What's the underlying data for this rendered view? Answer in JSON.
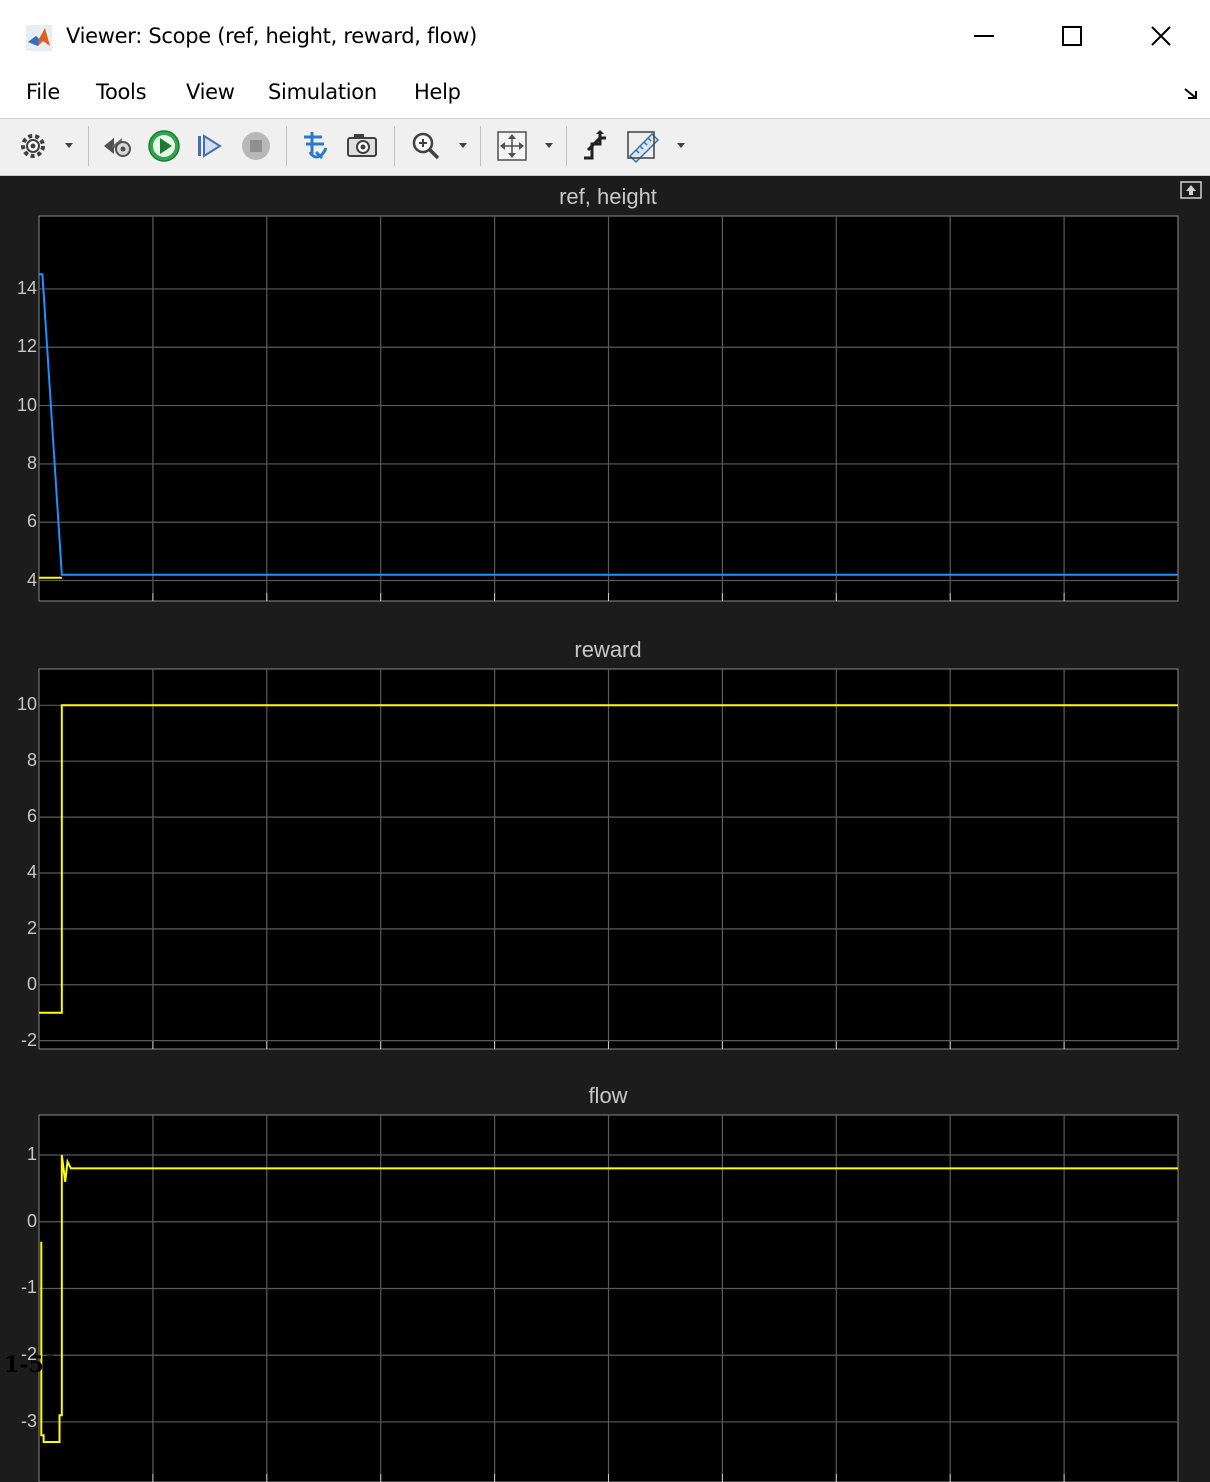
{
  "window": {
    "title": "Viewer: Scope (ref, height, reward, flow)",
    "minimize_icon": "minimize-icon",
    "maximize_icon": "maximize-icon",
    "close_icon": "close-icon"
  },
  "menu": {
    "items": [
      "File",
      "Tools",
      "View",
      "Simulation",
      "Help"
    ]
  },
  "toolbar": {
    "icons": [
      "settings-icon",
      "step-back-icon",
      "run-icon",
      "step-forward-icon",
      "stop-icon",
      "highlight-block-icon",
      "snapshot-icon",
      "zoom-icon",
      "autoscale-icon",
      "triggers-icon",
      "measurements-icon"
    ]
  },
  "colors": {
    "ref": "#ffff00",
    "height": "#1e90ff",
    "reward": "#ffff00",
    "flow": "#ffff00",
    "background": "#000000",
    "grid": "#5a5a5a"
  },
  "chart_data": [
    {
      "type": "line",
      "title": "ref, height",
      "ylim": [
        3.3,
        16.5
      ],
      "yticks": [
        "4",
        "6",
        "8",
        "10",
        "12",
        "14"
      ],
      "ytick_values": [
        4,
        6,
        8,
        10,
        12,
        14
      ],
      "xlim": [
        0,
        100
      ],
      "grid": true,
      "series": [
        {
          "color": "#ffff00",
          "x": [
            0,
            2
          ],
          "y": [
            4.1,
            4.1
          ]
        },
        {
          "color": "#1e90ff",
          "x": [
            0,
            0.3,
            2,
            100
          ],
          "y": [
            14.5,
            14.5,
            4.2,
            4.2
          ]
        }
      ]
    },
    {
      "type": "line",
      "title": "reward",
      "ylim": [
        -2.3,
        11.3
      ],
      "yticks": [
        "-2",
        "0",
        "2",
        "4",
        "6",
        "8",
        "10"
      ],
      "ytick_values": [
        -2,
        0,
        2,
        4,
        6,
        8,
        10
      ],
      "xlim": [
        0,
        100
      ],
      "grid": true,
      "series": [
        {
          "color": "#ffff00",
          "x": [
            0,
            2,
            2,
            100
          ],
          "y": [
            -1,
            -1,
            10,
            10
          ]
        }
      ]
    },
    {
      "type": "line",
      "title": "flow",
      "ylim": [
        -3.9,
        1.6
      ],
      "yticks": [
        "-3",
        "-2",
        "-1",
        "0",
        "1"
      ],
      "ytick_values": [
        -3,
        -2,
        -1,
        0,
        1
      ],
      "xlim": [
        0,
        100
      ],
      "grid": true,
      "series": [
        {
          "color": "#ffff00",
          "x": [
            0.2,
            0.2,
            0.4,
            0.4,
            1.8,
            1.8,
            2.0,
            2.0,
            2.3,
            2.5,
            2.8,
            100
          ],
          "y": [
            -0.3,
            -3.2,
            -3.2,
            -3.3,
            -3.3,
            -2.9,
            -2.9,
            1.0,
            0.6,
            0.9,
            0.8,
            0.8
          ]
        }
      ]
    }
  ],
  "overlay_text": "1-52"
}
